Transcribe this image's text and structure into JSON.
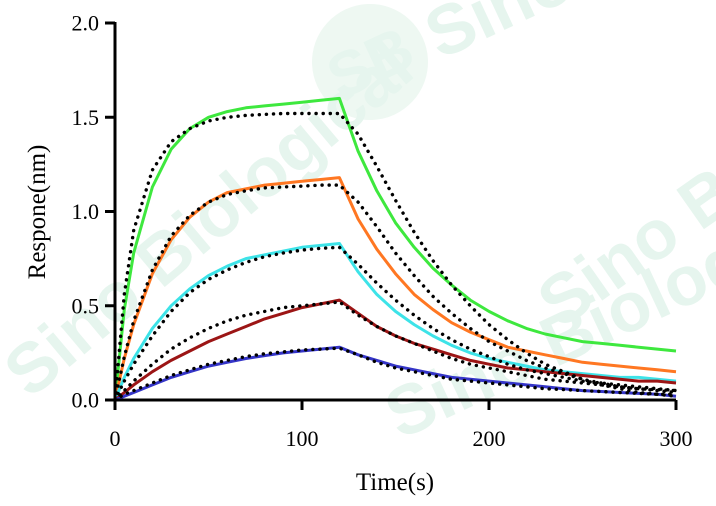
{
  "chart_data": {
    "type": "line",
    "title": "",
    "xlabel": "Time(s)",
    "ylabel": "Respone(nm)",
    "xlim": [
      0,
      300
    ],
    "ylim": [
      0,
      2.0
    ],
    "xticks": [
      0,
      100,
      200,
      300
    ],
    "xtick_labels": [
      "0",
      "100",
      "200",
      "300"
    ],
    "yticks": [
      0,
      0.5,
      1.0,
      1.5,
      2.0
    ],
    "ytick_labels": [
      "0.0",
      "0.5",
      "1.0",
      "1.5",
      "2.0"
    ],
    "grid": false,
    "legend": "none",
    "watermark": {
      "badge_text": "SB",
      "word": "Sino Biological"
    },
    "series": [
      {
        "style": "solid",
        "color": "#3ee83e",
        "x": [
          0,
          5,
          10,
          20,
          30,
          40,
          50,
          60,
          70,
          80,
          90,
          100,
          110,
          120,
          130,
          140,
          150,
          160,
          170,
          180,
          190,
          200,
          210,
          220,
          230,
          240,
          250,
          260,
          270,
          280,
          290,
          300
        ],
        "y": [
          0,
          0.48,
          0.78,
          1.13,
          1.33,
          1.44,
          1.5,
          1.53,
          1.55,
          1.56,
          1.57,
          1.58,
          1.59,
          1.6,
          1.32,
          1.11,
          0.94,
          0.81,
          0.7,
          0.61,
          0.53,
          0.47,
          0.42,
          0.38,
          0.35,
          0.33,
          0.31,
          0.3,
          0.29,
          0.28,
          0.27,
          0.26
        ]
      },
      {
        "style": "solid",
        "color": "#ff7722",
        "x": [
          0,
          5,
          10,
          20,
          30,
          40,
          50,
          60,
          70,
          80,
          90,
          100,
          110,
          120,
          130,
          140,
          150,
          160,
          170,
          180,
          190,
          200,
          210,
          220,
          230,
          240,
          250,
          260,
          270,
          280,
          290,
          300
        ],
        "y": [
          0,
          0.22,
          0.4,
          0.67,
          0.85,
          0.97,
          1.05,
          1.1,
          1.12,
          1.14,
          1.15,
          1.16,
          1.17,
          1.18,
          0.96,
          0.8,
          0.67,
          0.56,
          0.48,
          0.41,
          0.36,
          0.32,
          0.28,
          0.26,
          0.24,
          0.22,
          0.2,
          0.19,
          0.18,
          0.17,
          0.16,
          0.15
        ]
      },
      {
        "style": "solid",
        "color": "#3de3e8",
        "x": [
          0,
          5,
          10,
          20,
          30,
          40,
          50,
          60,
          70,
          80,
          90,
          100,
          110,
          120,
          130,
          140,
          150,
          160,
          170,
          180,
          190,
          200,
          210,
          220,
          230,
          240,
          250,
          260,
          270,
          280,
          290,
          300
        ],
        "y": [
          0,
          0.12,
          0.22,
          0.38,
          0.5,
          0.59,
          0.66,
          0.71,
          0.75,
          0.77,
          0.79,
          0.81,
          0.82,
          0.83,
          0.68,
          0.56,
          0.47,
          0.4,
          0.34,
          0.29,
          0.25,
          0.22,
          0.2,
          0.18,
          0.16,
          0.15,
          0.14,
          0.13,
          0.12,
          0.12,
          0.11,
          0.1
        ]
      },
      {
        "style": "solid",
        "color": "#9c1515",
        "x": [
          0,
          5,
          10,
          20,
          30,
          40,
          50,
          60,
          70,
          80,
          90,
          100,
          110,
          120,
          130,
          140,
          150,
          160,
          170,
          180,
          190,
          200,
          210,
          220,
          230,
          240,
          250,
          260,
          270,
          280,
          290,
          300
        ],
        "y": [
          0,
          0.04,
          0.08,
          0.15,
          0.21,
          0.26,
          0.31,
          0.35,
          0.39,
          0.43,
          0.46,
          0.49,
          0.51,
          0.53,
          0.46,
          0.39,
          0.34,
          0.3,
          0.27,
          0.24,
          0.21,
          0.19,
          0.17,
          0.16,
          0.15,
          0.14,
          0.13,
          0.12,
          0.11,
          0.1,
          0.1,
          0.09
        ]
      },
      {
        "style": "solid",
        "color": "#3535c8",
        "x": [
          0,
          5,
          10,
          20,
          30,
          40,
          50,
          60,
          70,
          80,
          90,
          100,
          110,
          120,
          130,
          140,
          150,
          160,
          170,
          180,
          190,
          200,
          210,
          220,
          230,
          240,
          250,
          260,
          270,
          280,
          290,
          300
        ],
        "y": [
          0,
          0.02,
          0.04,
          0.08,
          0.12,
          0.15,
          0.18,
          0.2,
          0.22,
          0.235,
          0.25,
          0.26,
          0.27,
          0.28,
          0.24,
          0.21,
          0.18,
          0.16,
          0.14,
          0.12,
          0.11,
          0.1,
          0.09,
          0.08,
          0.07,
          0.06,
          0.05,
          0.045,
          0.04,
          0.035,
          0.03,
          0.02
        ]
      },
      {
        "style": "dotted",
        "color": "#000000",
        "x": [
          0,
          5,
          10,
          20,
          30,
          40,
          50,
          60,
          70,
          80,
          90,
          100,
          110,
          120,
          130,
          140,
          150,
          160,
          170,
          180,
          190,
          200,
          210,
          220,
          230,
          240,
          250,
          260,
          270,
          280,
          290,
          300
        ],
        "y": [
          0,
          0.56,
          0.9,
          1.22,
          1.37,
          1.44,
          1.48,
          1.5,
          1.51,
          1.515,
          1.52,
          1.52,
          1.52,
          1.52,
          1.41,
          1.24,
          1.06,
          0.89,
          0.74,
          0.61,
          0.5,
          0.4,
          0.32,
          0.25,
          0.19,
          0.15,
          0.11,
          0.08,
          0.06,
          0.04,
          0.03,
          0.02
        ]
      },
      {
        "style": "dotted",
        "color": "#000000",
        "x": [
          0,
          5,
          10,
          20,
          30,
          40,
          50,
          60,
          70,
          80,
          90,
          100,
          110,
          120,
          130,
          140,
          150,
          160,
          170,
          180,
          190,
          200,
          210,
          220,
          230,
          240,
          250,
          260,
          270,
          280,
          290,
          300
        ],
        "y": [
          0,
          0.23,
          0.42,
          0.69,
          0.87,
          0.98,
          1.05,
          1.09,
          1.11,
          1.125,
          1.13,
          1.135,
          1.14,
          1.14,
          1.05,
          0.92,
          0.78,
          0.66,
          0.55,
          0.46,
          0.38,
          0.31,
          0.26,
          0.21,
          0.17,
          0.14,
          0.11,
          0.09,
          0.07,
          0.06,
          0.05,
          0.04
        ]
      },
      {
        "style": "dotted",
        "color": "#000000",
        "x": [
          0,
          5,
          10,
          20,
          30,
          40,
          50,
          60,
          70,
          80,
          90,
          100,
          110,
          120,
          130,
          140,
          150,
          160,
          170,
          180,
          190,
          200,
          210,
          220,
          230,
          240,
          250,
          260,
          270,
          280,
          290,
          300
        ],
        "y": [
          0,
          0.1,
          0.19,
          0.34,
          0.47,
          0.57,
          0.64,
          0.69,
          0.73,
          0.76,
          0.78,
          0.795,
          0.805,
          0.81,
          0.72,
          0.62,
          0.53,
          0.45,
          0.38,
          0.32,
          0.27,
          0.23,
          0.19,
          0.16,
          0.14,
          0.12,
          0.1,
          0.09,
          0.08,
          0.07,
          0.06,
          0.05
        ]
      },
      {
        "style": "dotted",
        "color": "#000000",
        "x": [
          0,
          5,
          10,
          20,
          30,
          40,
          50,
          60,
          70,
          80,
          90,
          100,
          110,
          120,
          130,
          140,
          150,
          160,
          170,
          180,
          190,
          200,
          210,
          220,
          230,
          240,
          250,
          260,
          270,
          280,
          290,
          300
        ],
        "y": [
          0,
          0.05,
          0.1,
          0.19,
          0.27,
          0.33,
          0.38,
          0.42,
          0.45,
          0.47,
          0.49,
          0.5,
          0.51,
          0.52,
          0.45,
          0.39,
          0.34,
          0.3,
          0.26,
          0.22,
          0.19,
          0.17,
          0.15,
          0.13,
          0.11,
          0.1,
          0.09,
          0.08,
          0.07,
          0.06,
          0.055,
          0.05
        ]
      },
      {
        "style": "dotted",
        "color": "#000000",
        "x": [
          0,
          5,
          10,
          20,
          30,
          40,
          50,
          60,
          70,
          80,
          90,
          100,
          110,
          120,
          130,
          140,
          150,
          160,
          170,
          180,
          190,
          200,
          210,
          220,
          230,
          240,
          250,
          260,
          270,
          280,
          290,
          300
        ],
        "y": [
          0,
          0.03,
          0.05,
          0.09,
          0.13,
          0.16,
          0.19,
          0.21,
          0.23,
          0.245,
          0.255,
          0.265,
          0.27,
          0.275,
          0.24,
          0.2,
          0.17,
          0.15,
          0.13,
          0.11,
          0.1,
          0.09,
          0.08,
          0.07,
          0.06,
          0.055,
          0.05,
          0.045,
          0.04,
          0.035,
          0.03,
          0.03
        ]
      }
    ]
  }
}
